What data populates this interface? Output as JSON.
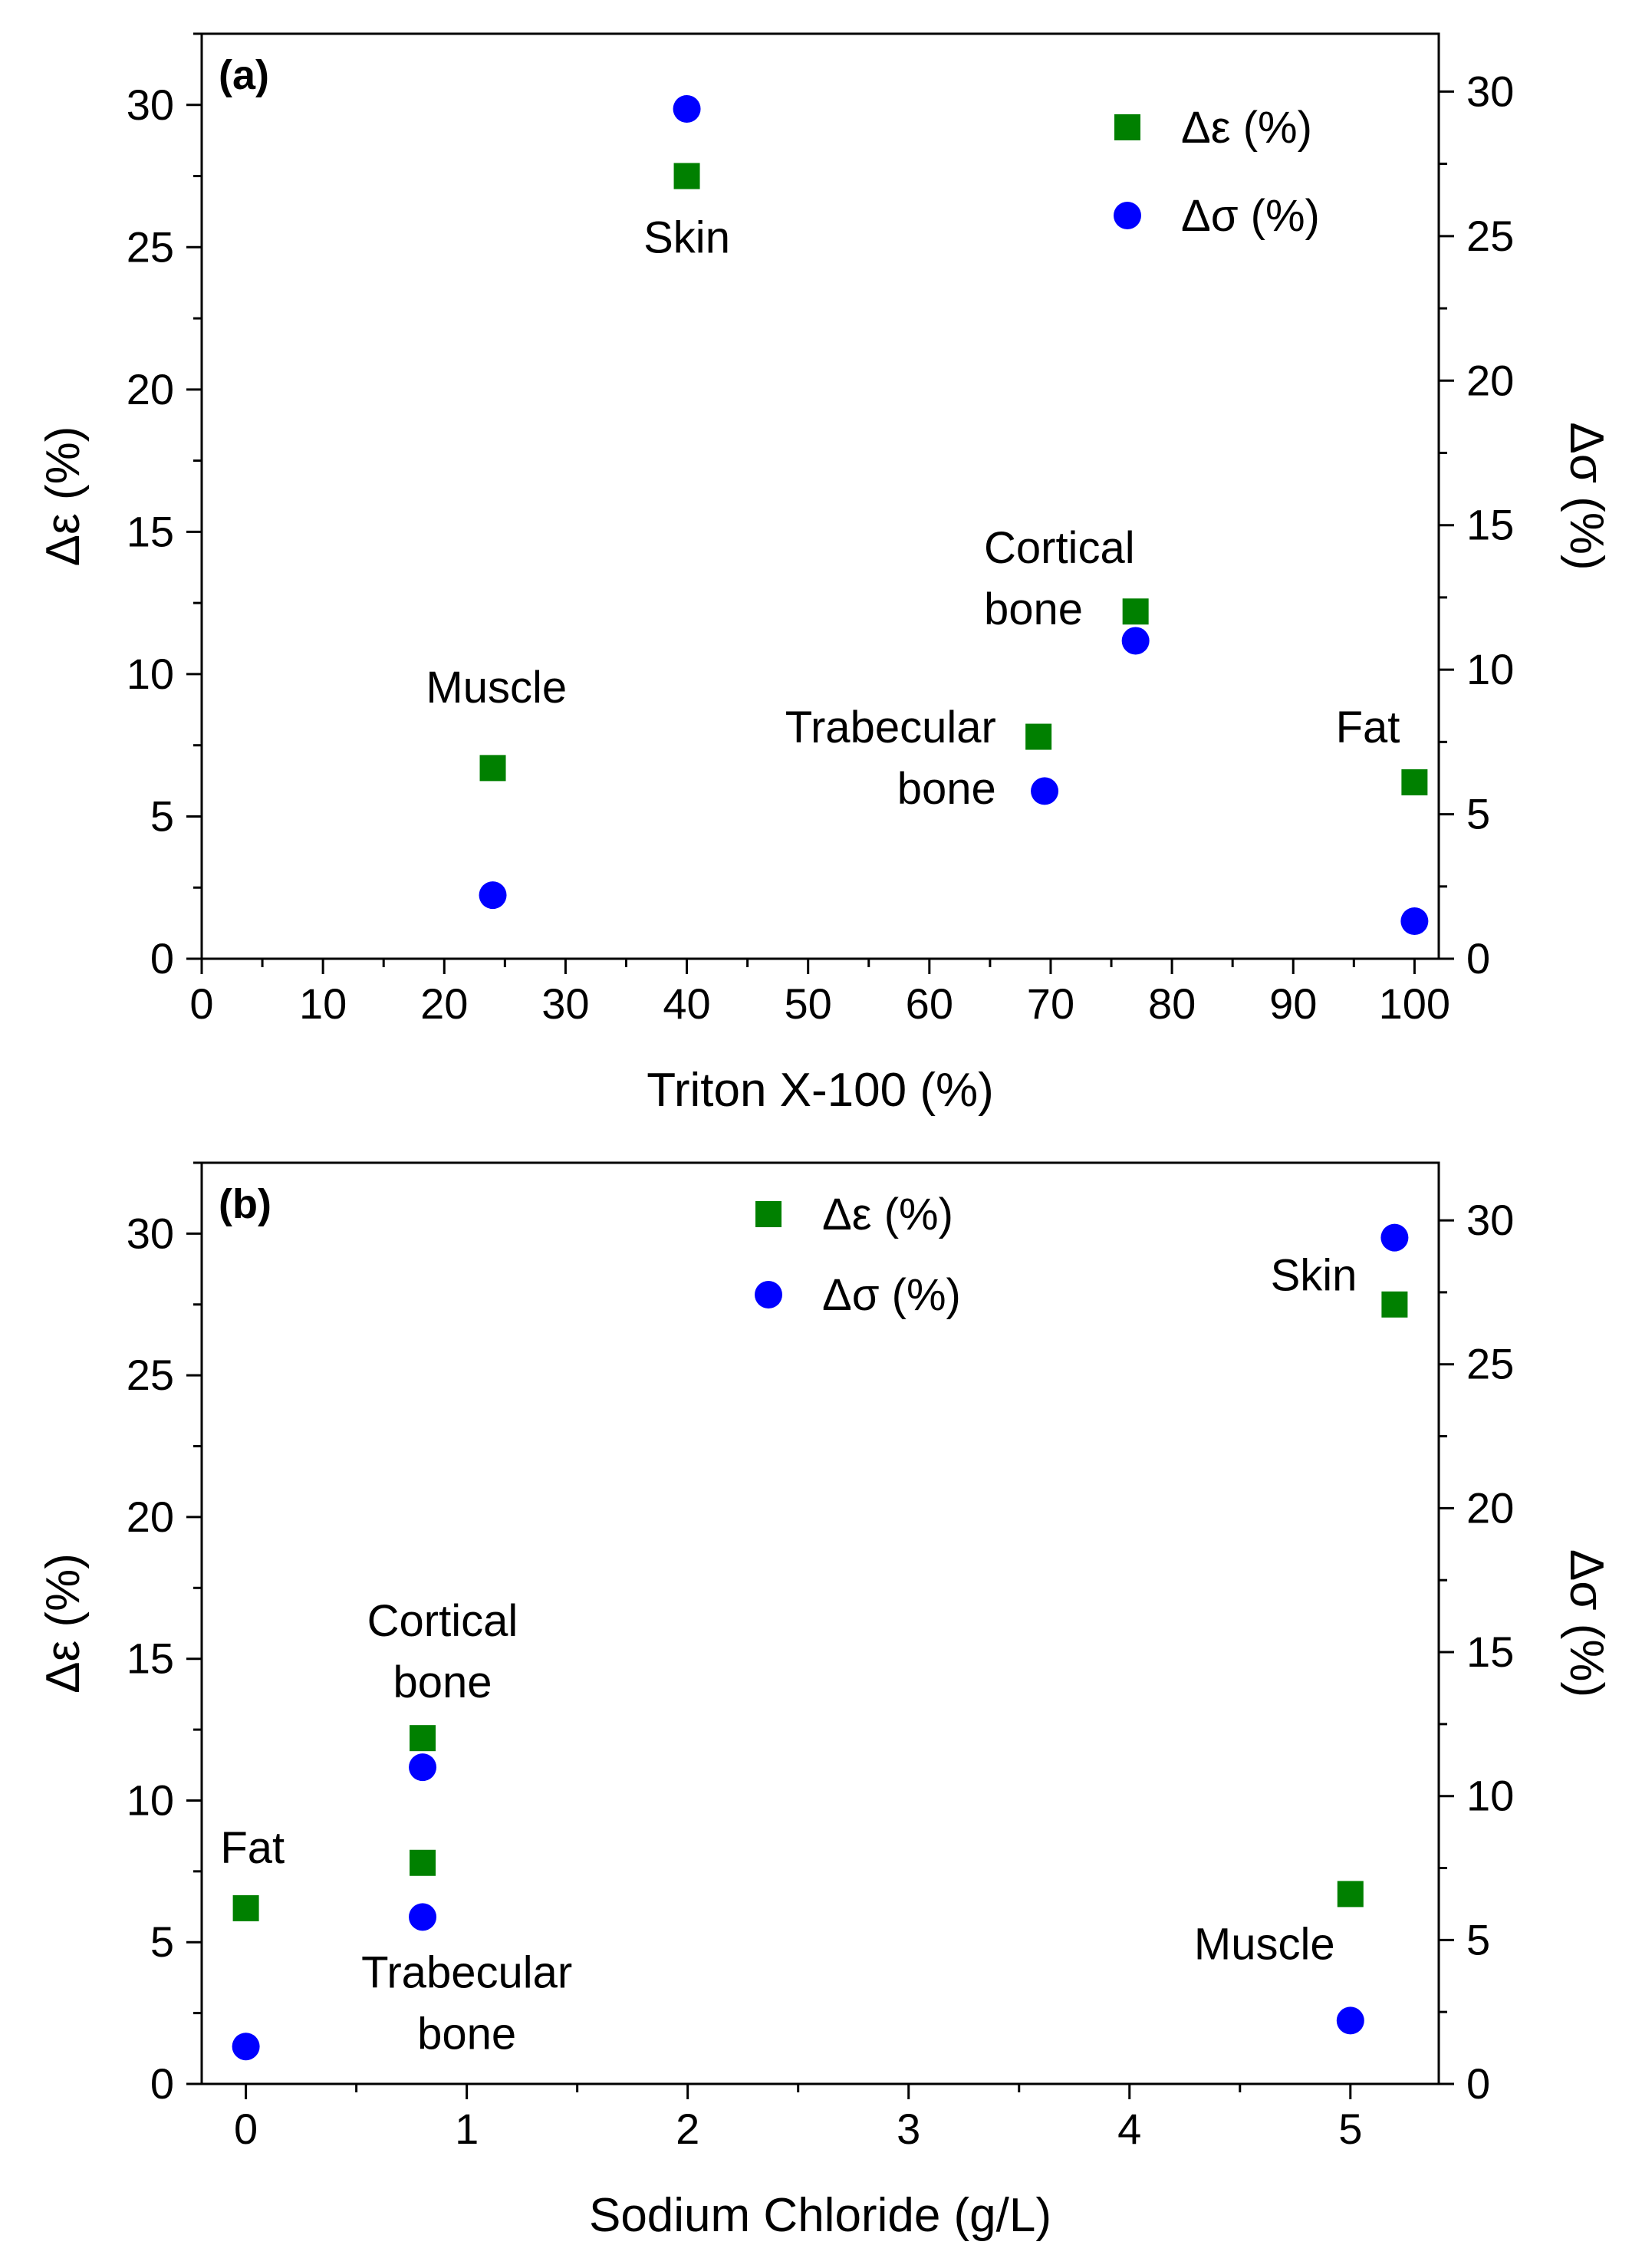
{
  "chart_data": [
    {
      "panel_label": "(a)",
      "type": "scatter",
      "xlabel": "Triton X-100 (%)",
      "ylabel": "Δε (%)",
      "y2label": "Δσ (%)",
      "xlim": [
        0,
        102
      ],
      "ylim": [
        0,
        32.5
      ],
      "y2lim": [
        0,
        32
      ],
      "xticks": [
        0,
        10,
        20,
        30,
        40,
        50,
        60,
        70,
        80,
        90,
        100
      ],
      "yticks": [
        0,
        5,
        10,
        15,
        20,
        25,
        30
      ],
      "y2ticks": [
        0,
        5,
        10,
        15,
        20,
        25,
        30
      ],
      "legend": [
        {
          "label": "Δε (%)",
          "color": "#008000",
          "marker": "square"
        },
        {
          "label": "Δσ (%)",
          "color": "#0000ff",
          "marker": "circle"
        }
      ],
      "legend_position": "top-right",
      "series": [
        {
          "name": "Δε (%)",
          "axis": "left",
          "color": "#008000",
          "marker": "square",
          "points": [
            {
              "label": "Muscle",
              "x": 24,
              "y": 6.7
            },
            {
              "label": "Skin",
              "x": 40,
              "y": 27.5
            },
            {
              "label": "Trabecular bone",
              "x": 69,
              "y": 7.8
            },
            {
              "label": "Cortical bone",
              "x": 77,
              "y": 12.2
            },
            {
              "label": "Fat",
              "x": 100,
              "y": 6.2
            }
          ]
        },
        {
          "name": "Δσ (%)",
          "axis": "right",
          "color": "#0000ff",
          "marker": "circle",
          "points": [
            {
              "label": "Muscle",
              "x": 24,
              "y": 2.2
            },
            {
              "label": "Skin",
              "x": 40,
              "y": 29.4
            },
            {
              "label": "Trabecular bone",
              "x": 69.5,
              "y": 5.8
            },
            {
              "label": "Cortical bone",
              "x": 77,
              "y": 11.0
            },
            {
              "label": "Fat",
              "x": 100,
              "y": 1.3
            }
          ]
        }
      ],
      "annotations": [
        {
          "lines": [
            "Skin"
          ],
          "x": 40,
          "y": 24.8,
          "anchor": "middle"
        },
        {
          "lines": [
            "Muscle"
          ],
          "x": 24.3,
          "y": 9.0,
          "anchor": "middle"
        },
        {
          "lines": [
            "Cortical",
            "bone"
          ],
          "x": 64.5,
          "y": 13.9,
          "anchor": "start"
        },
        {
          "lines": [
            "Trabecular",
            "bone"
          ],
          "x": 65.5,
          "y": 7.6,
          "anchor": "end"
        },
        {
          "lines": [
            "Fat"
          ],
          "x": 98.8,
          "y": 7.6,
          "anchor": "end"
        }
      ]
    },
    {
      "panel_label": "(b)",
      "type": "scatter",
      "xlabel": "Sodium Chloride (g/L)",
      "ylabel": "Δε (%)",
      "y2label": "Δσ (%)",
      "xlim": [
        -0.2,
        5.4
      ],
      "ylim": [
        0,
        32.5
      ],
      "y2lim": [
        0,
        32
      ],
      "xticks": [
        0,
        1,
        2,
        3,
        4,
        5
      ],
      "yticks": [
        0,
        5,
        10,
        15,
        20,
        25,
        30
      ],
      "y2ticks": [
        0,
        5,
        10,
        15,
        20,
        25,
        30
      ],
      "legend": [
        {
          "label": "Δε (%)",
          "color": "#008000",
          "marker": "square"
        },
        {
          "label": "Δσ (%)",
          "color": "#0000ff",
          "marker": "circle"
        }
      ],
      "legend_position": "top-center",
      "series": [
        {
          "name": "Δε (%)",
          "axis": "left",
          "color": "#008000",
          "marker": "square",
          "points": [
            {
              "label": "Fat",
              "x": 0,
              "y": 6.2
            },
            {
              "label": "Cortical bone",
              "x": 0.8,
              "y": 12.2
            },
            {
              "label": "Trabecular bone",
              "x": 0.8,
              "y": 7.8
            },
            {
              "label": "Muscle",
              "x": 5,
              "y": 6.7
            },
            {
              "label": "Skin",
              "x": 5.2,
              "y": 27.5
            }
          ]
        },
        {
          "name": "Δσ (%)",
          "axis": "right",
          "color": "#0000ff",
          "marker": "circle",
          "points": [
            {
              "label": "Fat",
              "x": 0,
              "y": 1.3
            },
            {
              "label": "Cortical bone",
              "x": 0.8,
              "y": 11.0
            },
            {
              "label": "Trabecular bone",
              "x": 0.8,
              "y": 5.8
            },
            {
              "label": "Muscle",
              "x": 5,
              "y": 2.2
            },
            {
              "label": "Skin",
              "x": 5.2,
              "y": 29.4
            }
          ]
        }
      ],
      "annotations": [
        {
          "lines": [
            "Skin"
          ],
          "x": 5.03,
          "y": 28.0,
          "anchor": "end"
        },
        {
          "lines": [
            "Cortical",
            "bone"
          ],
          "x": 0.89,
          "y": 15.8,
          "anchor": "middle"
        },
        {
          "lines": [
            "Fat"
          ],
          "x": 0.03,
          "y": 7.8,
          "anchor": "middle"
        },
        {
          "lines": [
            "Trabecular",
            "bone"
          ],
          "x": 1.0,
          "y": 3.4,
          "anchor": "middle"
        },
        {
          "lines": [
            "Muscle"
          ],
          "x": 4.93,
          "y": 4.4,
          "anchor": "end"
        }
      ]
    }
  ]
}
